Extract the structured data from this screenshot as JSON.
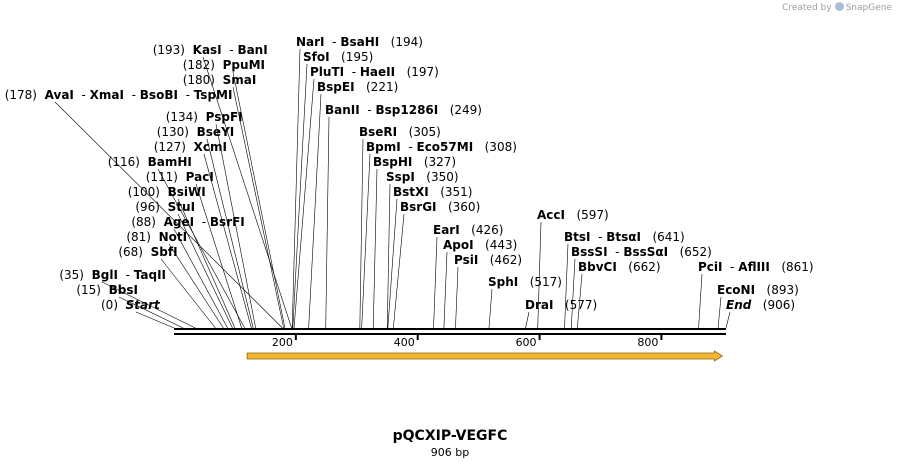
{
  "credit": {
    "prefix": "Created by",
    "brand": "SnapGene"
  },
  "plasmid": {
    "name": "pQCXIP-VEGFC",
    "size_label": "906 bp",
    "length_bp": 906
  },
  "axis": {
    "ticks": [
      {
        "pos": 200,
        "label": "200"
      },
      {
        "pos": 400,
        "label": "400"
      },
      {
        "pos": 600,
        "label": "600"
      },
      {
        "pos": 800,
        "label": "800"
      }
    ]
  },
  "feature": {
    "name": "orf-arrow",
    "start_bp": 120,
    "end_bp": 900,
    "color": "#f2b632",
    "direction": "forward"
  },
  "sites": [
    {
      "names": [
        "BglI",
        "TaqII"
      ],
      "pos": 35,
      "num_label": "(35)",
      "num_side": "left"
    },
    {
      "names": [
        "BbsI"
      ],
      "pos": 15,
      "num_label": "(15)",
      "num_side": "left"
    },
    {
      "names": [
        "Start"
      ],
      "pos": 0,
      "num_label": "(0)",
      "num_side": "left",
      "italic": true
    },
    {
      "names": [
        "SbfI"
      ],
      "pos": 68,
      "num_label": "(68)",
      "num_side": "left"
    },
    {
      "names": [
        "NotI"
      ],
      "pos": 81,
      "num_label": "(81)",
      "num_side": "left"
    },
    {
      "names": [
        "AgeI",
        "BsrFI"
      ],
      "pos": 88,
      "num_label": "(88)",
      "num_side": "left"
    },
    {
      "names": [
        "StuI"
      ],
      "pos": 96,
      "num_label": "(96)",
      "num_side": "left"
    },
    {
      "names": [
        "BsiWI"
      ],
      "pos": 100,
      "num_label": "(100)",
      "num_side": "left"
    },
    {
      "names": [
        "PacI"
      ],
      "pos": 111,
      "num_label": "(111)",
      "num_side": "left"
    },
    {
      "names": [
        "BamHI"
      ],
      "pos": 116,
      "num_label": "(116)",
      "num_side": "left"
    },
    {
      "names": [
        "XcmI"
      ],
      "pos": 127,
      "num_label": "(127)",
      "num_side": "left"
    },
    {
      "names": [
        "BseYI"
      ],
      "pos": 130,
      "num_label": "(130)",
      "num_side": "left"
    },
    {
      "names": [
        "PspFI"
      ],
      "pos": 134,
      "num_label": "(134)",
      "num_side": "left"
    },
    {
      "names": [
        "AvaI",
        "XmaI",
        "BsoBI",
        "TspMI"
      ],
      "pos": 178,
      "num_label": "(178)",
      "num_side": "left"
    },
    {
      "names": [
        "SmaI"
      ],
      "pos": 180,
      "num_label": "(180)",
      "num_side": "left"
    },
    {
      "names": [
        "PpuMI"
      ],
      "pos": 182,
      "num_label": "(182)",
      "num_side": "left"
    },
    {
      "names": [
        "KasI",
        "BanI"
      ],
      "pos": 193,
      "num_label": "(193)",
      "num_side": "left"
    },
    {
      "names": [
        "NarI",
        "BsaHI"
      ],
      "pos": 194,
      "num_label": "(194)",
      "num_side": "right"
    },
    {
      "names": [
        "SfoI"
      ],
      "pos": 195,
      "num_label": "(195)",
      "num_side": "right"
    },
    {
      "names": [
        "PluTI",
        "HaeII"
      ],
      "pos": 197,
      "num_label": "(197)",
      "num_side": "right"
    },
    {
      "names": [
        "BspEI"
      ],
      "pos": 221,
      "num_label": "(221)",
      "num_side": "right"
    },
    {
      "names": [
        "BanII",
        "Bsp1286I"
      ],
      "pos": 249,
      "num_label": "(249)",
      "num_side": "right"
    },
    {
      "names": [
        "BseRI"
      ],
      "pos": 305,
      "num_label": "(305)",
      "num_side": "right"
    },
    {
      "names": [
        "BpmI",
        "Eco57MI"
      ],
      "pos": 308,
      "num_label": "(308)",
      "num_side": "right"
    },
    {
      "names": [
        "BspHI"
      ],
      "pos": 327,
      "num_label": "(327)",
      "num_side": "right"
    },
    {
      "names": [
        "SspI"
      ],
      "pos": 350,
      "num_label": "(350)",
      "num_side": "right"
    },
    {
      "names": [
        "BstXI"
      ],
      "pos": 351,
      "num_label": "(351)",
      "num_side": "right"
    },
    {
      "names": [
        "BsrGI"
      ],
      "pos": 360,
      "num_label": "(360)",
      "num_side": "right"
    },
    {
      "names": [
        "EarI"
      ],
      "pos": 426,
      "num_label": "(426)",
      "num_side": "right"
    },
    {
      "names": [
        "ApoI"
      ],
      "pos": 443,
      "num_label": "(443)",
      "num_side": "right"
    },
    {
      "names": [
        "PsiI"
      ],
      "pos": 462,
      "num_label": "(462)",
      "num_side": "right"
    },
    {
      "names": [
        "SphI"
      ],
      "pos": 517,
      "num_label": "(517)",
      "num_side": "right"
    },
    {
      "names": [
        "DraI"
      ],
      "pos": 577,
      "num_label": "(577)",
      "num_side": "right"
    },
    {
      "names": [
        "AccI"
      ],
      "pos": 597,
      "num_label": "(597)",
      "num_side": "right"
    },
    {
      "names": [
        "BtsI",
        "BtsαI"
      ],
      "pos": 641,
      "num_label": "(641)",
      "num_side": "right"
    },
    {
      "names": [
        "BssSI",
        "BssSαI"
      ],
      "pos": 652,
      "num_label": "(652)",
      "num_side": "right"
    },
    {
      "names": [
        "BbvCI"
      ],
      "pos": 662,
      "num_label": "(662)",
      "num_side": "right"
    },
    {
      "names": [
        "PciI",
        "AflIII"
      ],
      "pos": 861,
      "num_label": "(861)",
      "num_side": "right"
    },
    {
      "names": [
        "EcoNI"
      ],
      "pos": 893,
      "num_label": "(893)",
      "num_side": "right"
    },
    {
      "names": [
        "End"
      ],
      "pos": 906,
      "num_label": "(906)",
      "num_side": "right",
      "italic": true
    }
  ]
}
